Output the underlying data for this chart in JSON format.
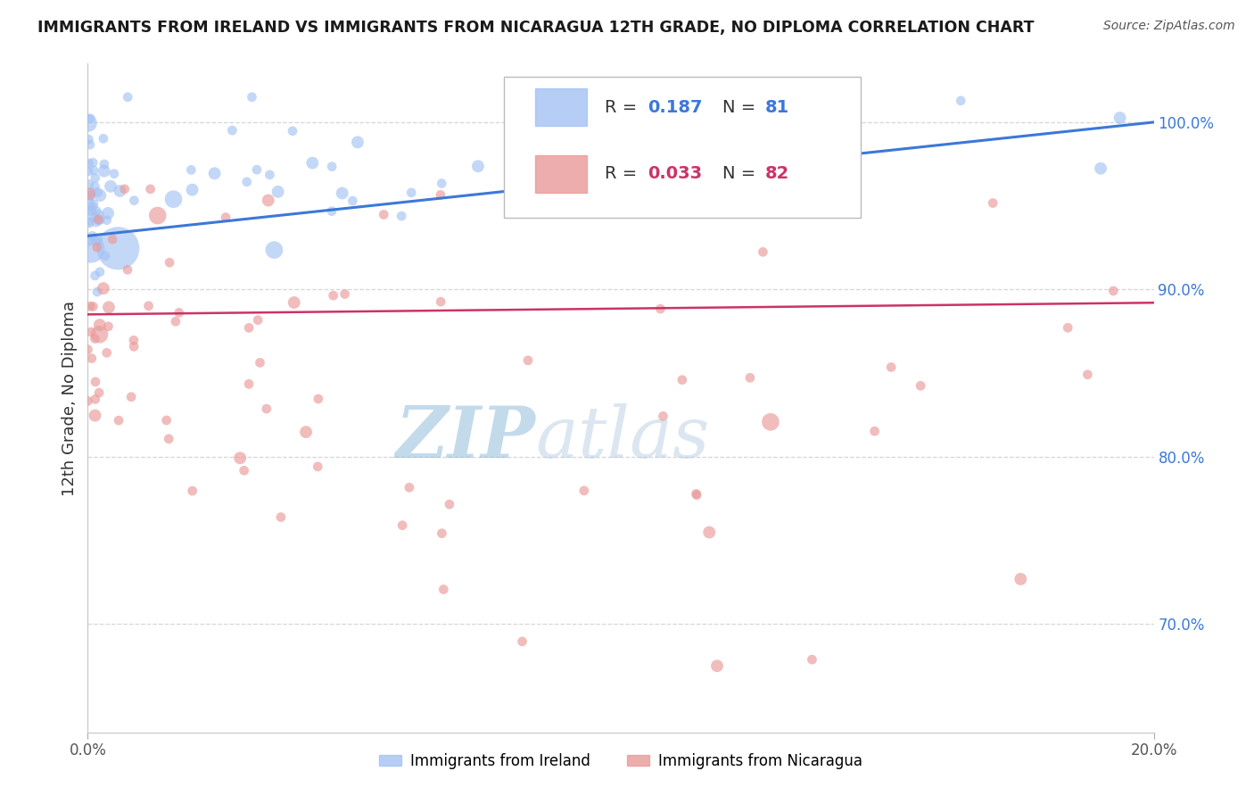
{
  "title": "IMMIGRANTS FROM IRELAND VS IMMIGRANTS FROM NICARAGUA 12TH GRADE, NO DIPLOMA CORRELATION CHART",
  "source": "Source: ZipAtlas.com",
  "ylabel": "12th Grade, No Diploma",
  "y_ticks": [
    70.0,
    80.0,
    90.0,
    100.0
  ],
  "y_tick_labels": [
    "70.0%",
    "80.0%",
    "90.0%",
    "100.0%"
  ],
  "xlim": [
    0.0,
    20.0
  ],
  "ylim": [
    63.5,
    103.5
  ],
  "ireland_R": 0.187,
  "ireland_N": 81,
  "nicaragua_R": 0.033,
  "nicaragua_N": 82,
  "ireland_color": "#a4c2f4",
  "nicaragua_color": "#ea9999",
  "ireland_line_color": "#3c78d8",
  "nicaragua_line_color": "#cc3366",
  "tick_color": "#3c78d8",
  "legend_label_ireland": "Immigrants from Ireland",
  "legend_label_nicaragua": "Immigrants from Nicaragua",
  "watermark_zip": "ZIP",
  "watermark_atlas": "atlas",
  "watermark_color_zip": "#b0c8e8",
  "watermark_color_atlas": "#c8d8e8",
  "background_color": "#ffffff",
  "ireland_trend_y0": 93.2,
  "ireland_trend_y1": 100.0,
  "nicaragua_trend_y0": 88.5,
  "nicaragua_trend_y1": 89.2
}
